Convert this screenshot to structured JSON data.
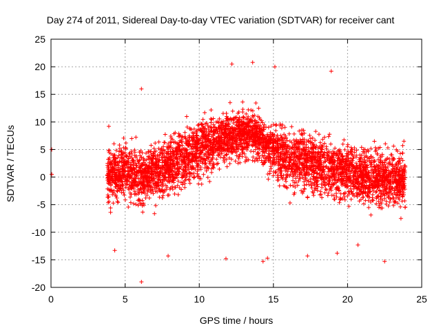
{
  "chart_data": {
    "type": "scatter",
    "title": "Day 274 of 2011, Sidereal Day-to-day VTEC variation (SDTVAR) for receiver cant",
    "xlabel": "GPS time / hours",
    "ylabel": "SDTVAR / TECUs",
    "xlim": [
      0,
      25
    ],
    "ylim": [
      -20,
      25
    ],
    "xticks": [
      "0",
      "5",
      "10",
      "15",
      "20",
      "25"
    ],
    "yticks": [
      "-20",
      "-15",
      "-10",
      "-5",
      "0",
      "5",
      "10",
      "15",
      "20",
      "25"
    ],
    "grid": true,
    "marker": "+",
    "color": "#ff0000",
    "trend": [
      {
        "x": 3.8,
        "y": 0.5
      },
      {
        "x": 5,
        "y": 1
      },
      {
        "x": 6,
        "y": 0
      },
      {
        "x": 7,
        "y": 1
      },
      {
        "x": 8,
        "y": 2
      },
      {
        "x": 9,
        "y": 4
      },
      {
        "x": 10,
        "y": 5
      },
      {
        "x": 11,
        "y": 6
      },
      {
        "x": 12,
        "y": 7.5
      },
      {
        "x": 13,
        "y": 8
      },
      {
        "x": 14,
        "y": 7
      },
      {
        "x": 15,
        "y": 5
      },
      {
        "x": 16,
        "y": 3
      },
      {
        "x": 17,
        "y": 3
      },
      {
        "x": 18,
        "y": 2
      },
      {
        "x": 19,
        "y": 1.5
      },
      {
        "x": 20,
        "y": 1
      },
      {
        "x": 21,
        "y": 0.5
      },
      {
        "x": 22,
        "y": 0
      },
      {
        "x": 23,
        "y": -0.5
      },
      {
        "x": 23.9,
        "y": 0
      }
    ],
    "points": [
      {
        "x": 0.05,
        "y": 5
      },
      {
        "x": 0.05,
        "y": 0.5
      },
      {
        "x": 6.1,
        "y": -19
      },
      {
        "x": 6.1,
        "y": 16
      },
      {
        "x": 12.2,
        "y": 20.5
      },
      {
        "x": 13.6,
        "y": 20.8
      },
      {
        "x": 15.1,
        "y": 20
      },
      {
        "x": 18.9,
        "y": 19.2
      },
      {
        "x": 11.8,
        "y": -14.8
      },
      {
        "x": 14.3,
        "y": -15.3
      },
      {
        "x": 14.6,
        "y": -14.7
      },
      {
        "x": 22.5,
        "y": -15.3
      },
      {
        "x": 7.9,
        "y": -14.3
      },
      {
        "x": 4.3,
        "y": -13.3
      },
      {
        "x": 17.3,
        "y": -14.3
      },
      {
        "x": 19.3,
        "y": -13.8
      },
      {
        "x": 20.7,
        "y": -12.3
      },
      {
        "x": 23.8,
        "y": 6.5
      },
      {
        "x": 23.6,
        "y": -7.5
      },
      {
        "x": 3.9,
        "y": 9.2
      }
    ]
  }
}
